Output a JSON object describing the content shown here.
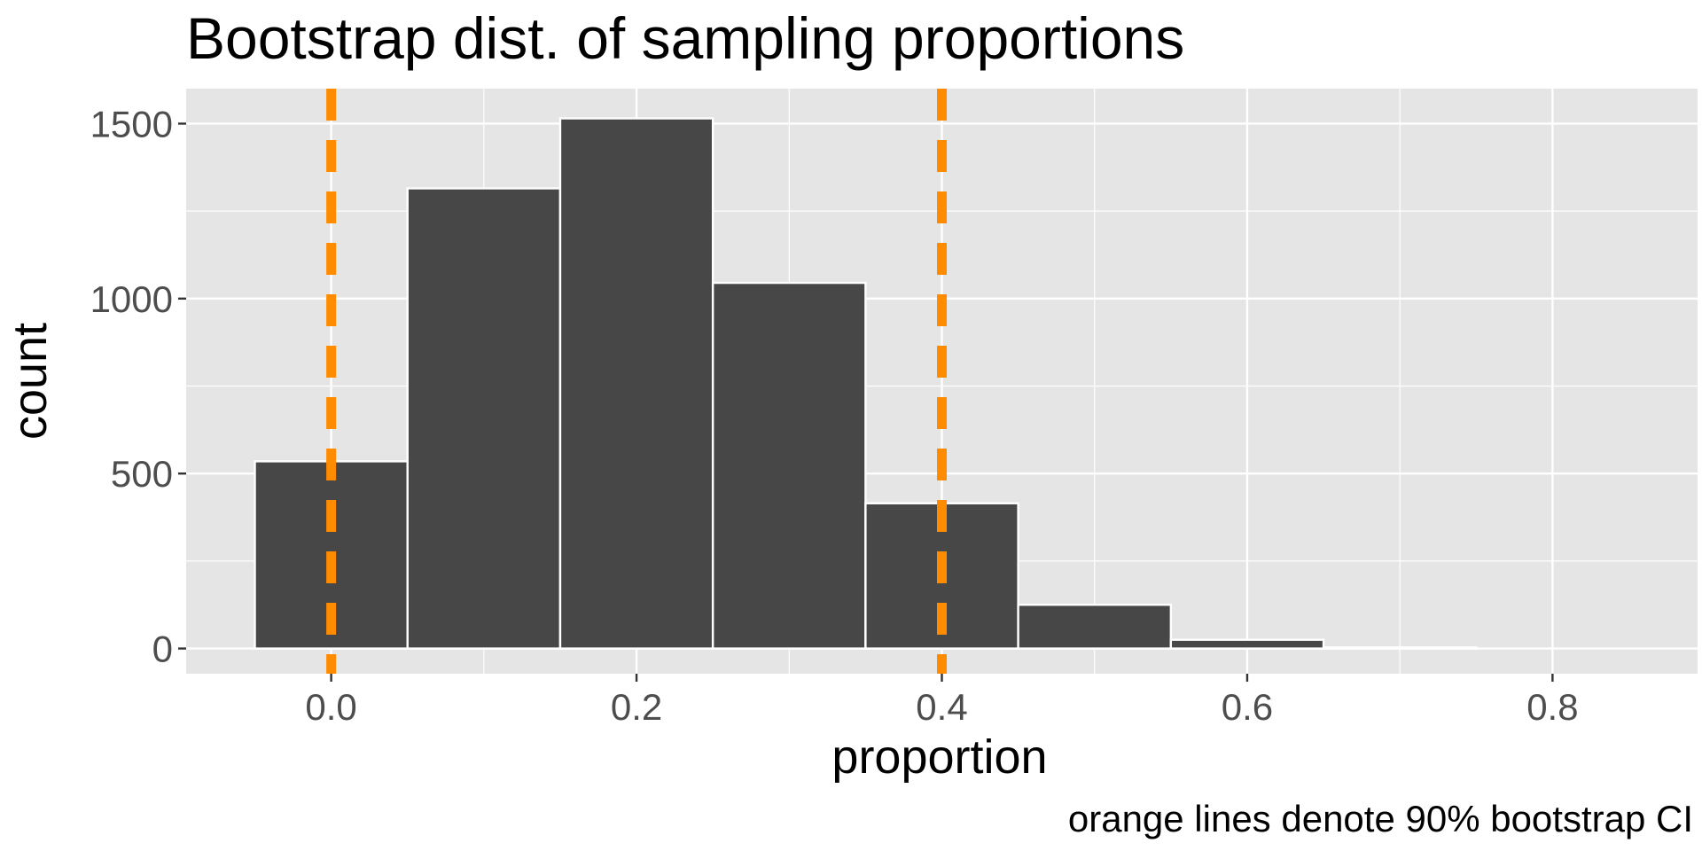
{
  "chart_data": {
    "type": "bar",
    "title": "Bootstrap dist. of sampling proportions",
    "xlabel": "proportion",
    "ylabel": "count",
    "caption": "orange lines denote 90% bootstrap CI",
    "bin_width": 0.1,
    "bin_centers": [
      0.0,
      0.1,
      0.2,
      0.3,
      0.4,
      0.5,
      0.6,
      0.7
    ],
    "values": [
      535,
      1315,
      1515,
      1045,
      415,
      125,
      25,
      3
    ],
    "xlim": [
      -0.095,
      0.895
    ],
    "ylim": [
      -72,
      1600
    ],
    "x_ticks": [
      0.0,
      0.2,
      0.4,
      0.6,
      0.8
    ],
    "x_tick_labels": [
      "0.0",
      "0.2",
      "0.4",
      "0.6",
      "0.8"
    ],
    "y_ticks": [
      0,
      500,
      1000,
      1500
    ],
    "y_tick_labels": [
      "0",
      "500",
      "1000",
      "1500"
    ],
    "ci_lines": [
      0.0,
      0.4
    ],
    "grid": true,
    "colors": {
      "panel": "#e5e5e5",
      "grid": "#ffffff",
      "bar_fill": "#474747",
      "bar_outline": "#ffffff",
      "ci_line": "#ff8c00",
      "tick_text": "#4d4d4d"
    }
  }
}
